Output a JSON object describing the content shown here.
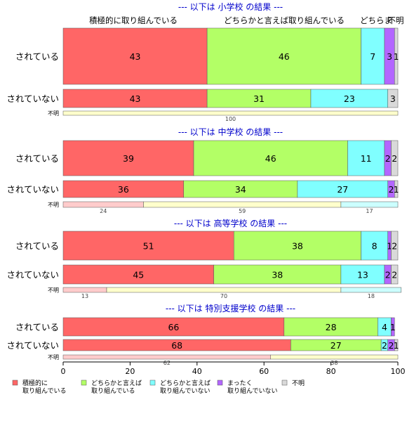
{
  "chart_data": {
    "type": "bar",
    "orientation": "horizontal",
    "stacked": true,
    "xlim": [
      0,
      100
    ],
    "xticks": [
      0,
      20,
      40,
      60,
      80,
      100
    ],
    "categories": [
      "積極的に取り組んでいる",
      "どちらかと言えば取り組んでいる",
      "どちらかと言えば取り組んでいない",
      "まったく取り組んでいない",
      "不明"
    ],
    "header_labels": [
      "積極的に取り組んでいる",
      "どちらかと言えば取り組んでいる",
      "どちらま",
      "不明"
    ],
    "legend": [
      {
        "lines": [
          "積極的に",
          "取り組んでいる"
        ],
        "color": "#ff6666"
      },
      {
        "lines": [
          "どちらかと言えば",
          "取り組んでいる"
        ],
        "color": "#b3ff66"
      },
      {
        "lines": [
          "どちらかと言えば",
          "取り組んでいない"
        ],
        "color": "#80ffff"
      },
      {
        "lines": [
          "まったく",
          "取り組んでいない"
        ],
        "color": "#b366ff"
      },
      {
        "lines": [
          "不明"
        ],
        "color": "#d9d9d9"
      }
    ],
    "light_colors": [
      "#ffcccc",
      "#ffffcc",
      "#ccffff"
    ],
    "panels": [
      {
        "title": "--- 以下は 小学校 の結果 ---",
        "rows": [
          {
            "label": "されている",
            "values": [
              43,
              46,
              7,
              3,
              1
            ],
            "labels": [
              "43",
              "46",
              "7",
              "3",
              "1"
            ]
          },
          {
            "label": "されていない",
            "values": [
              43,
              31,
              23,
              0,
              3
            ],
            "labels": [
              "43",
              "31",
              "23",
              "",
              "3"
            ]
          },
          {
            "label": "不明",
            "small": true,
            "values": [
              0,
              100,
              0
            ],
            "labels": [
              "",
              "100",
              ""
            ]
          }
        ]
      },
      {
        "title": "--- 以下は 中学校 の結果 ---",
        "rows": [
          {
            "label": "されている",
            "values": [
              39,
              46,
              11,
              2,
              2
            ],
            "labels": [
              "39",
              "46",
              "11",
              "2",
              "2"
            ]
          },
          {
            "label": "されていない",
            "values": [
              36,
              34,
              27,
              2,
              1
            ],
            "labels": [
              "36",
              "34",
              "27",
              "2",
              "1"
            ]
          },
          {
            "label": "不明",
            "small": true,
            "values": [
              24,
              59,
              17
            ],
            "labels": [
              "24",
              "59",
              "17"
            ]
          }
        ]
      },
      {
        "title": "--- 以下は 高等学校 の結果 ---",
        "rows": [
          {
            "label": "されている",
            "values": [
              51,
              38,
              8,
              1,
              2
            ],
            "labels": [
              "51",
              "38",
              "8",
              "1",
              "2"
            ]
          },
          {
            "label": "されていない",
            "values": [
              45,
              38,
              13,
              2,
              2
            ],
            "labels": [
              "45",
              "38",
              "13",
              "2",
              "2"
            ]
          },
          {
            "label": "不明",
            "small": true,
            "values": [
              13,
              70,
              18
            ],
            "labels": [
              "13",
              "70",
              "18"
            ]
          }
        ]
      },
      {
        "title": "--- 以下は 特別支援学校 の結果 ---",
        "rows": [
          {
            "label": "されている",
            "values": [
              66,
              28,
              4,
              1,
              0
            ],
            "labels": [
              "66",
              "28",
              "4",
              "1",
              ""
            ]
          },
          {
            "label": "されていない",
            "values": [
              68,
              27,
              2,
              2,
              1
            ],
            "labels": [
              "68",
              "27",
              "2",
              "2",
              "1"
            ]
          },
          {
            "label": "不明",
            "small": true,
            "values": [
              62,
              38,
              0
            ],
            "labels": [
              "62",
              "38",
              ""
            ]
          }
        ]
      }
    ]
  }
}
